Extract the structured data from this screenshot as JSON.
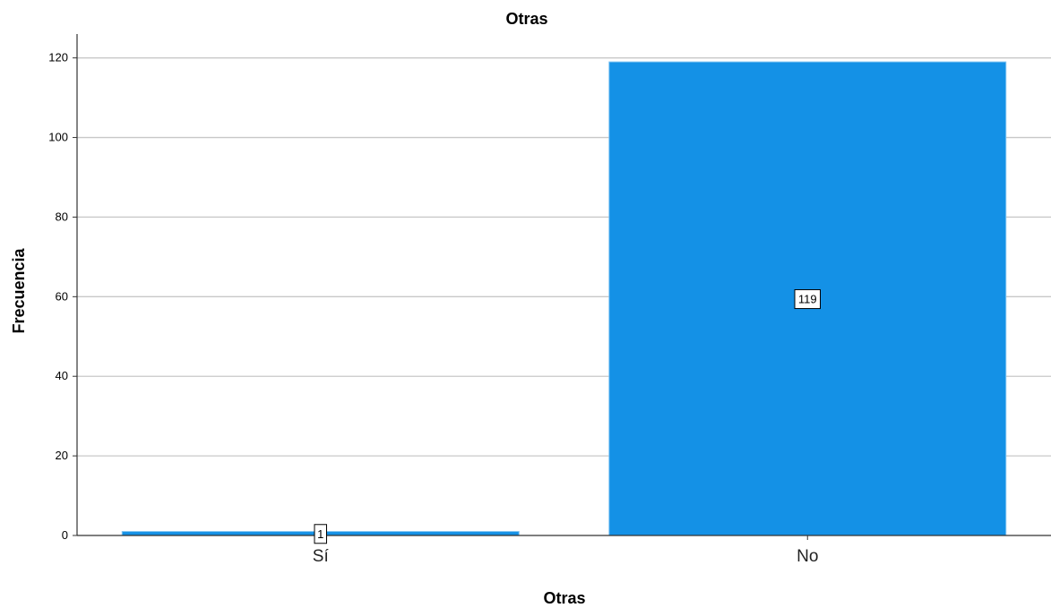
{
  "chart_data": {
    "type": "bar",
    "title": "Otras",
    "xlabel": "Otras",
    "ylabel": "Frecuencia",
    "categories": [
      "Sí",
      "No"
    ],
    "values": [
      1,
      119
    ],
    "data_labels": [
      "1",
      "119"
    ],
    "ylim": [
      0,
      126
    ],
    "yticks": [
      0,
      20,
      40,
      60,
      80,
      100,
      120
    ],
    "grid": true,
    "legend": "none",
    "bar_color": "#1491e6",
    "bar_edge_color": "#7fc4f2"
  }
}
